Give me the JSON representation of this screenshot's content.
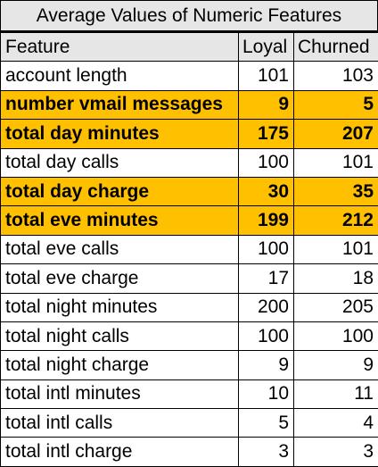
{
  "title": "Average Values of Numeric Features",
  "highlight_color": "#ffc000",
  "header_color": "#e6e6e6",
  "columns": [
    "Feature",
    "Loyal",
    "Churned"
  ],
  "rows": [
    {
      "feature": "account length",
      "loyal": "101",
      "churned": "103",
      "highlighted": false
    },
    {
      "feature": "number vmail messages",
      "loyal": "9",
      "churned": "5",
      "highlighted": true
    },
    {
      "feature": "total day minutes",
      "loyal": "175",
      "churned": "207",
      "highlighted": true
    },
    {
      "feature": "total day calls",
      "loyal": "100",
      "churned": "101",
      "highlighted": false
    },
    {
      "feature": "total day charge",
      "loyal": "30",
      "churned": "35",
      "highlighted": true
    },
    {
      "feature": "total eve minutes",
      "loyal": "199",
      "churned": "212",
      "highlighted": true
    },
    {
      "feature": "total eve calls",
      "loyal": "100",
      "churned": "101",
      "highlighted": false
    },
    {
      "feature": "total eve charge",
      "loyal": "17",
      "churned": "18",
      "highlighted": false
    },
    {
      "feature": "total night minutes",
      "loyal": "200",
      "churned": "205",
      "highlighted": false
    },
    {
      "feature": "total night calls",
      "loyal": "100",
      "churned": "100",
      "highlighted": false
    },
    {
      "feature": "total night charge",
      "loyal": "9",
      "churned": "9",
      "highlighted": false
    },
    {
      "feature": "total intl minutes",
      "loyal": "10",
      "churned": "11",
      "highlighted": false
    },
    {
      "feature": "total intl calls",
      "loyal": "5",
      "churned": "4",
      "highlighted": false
    },
    {
      "feature": "total intl charge",
      "loyal": "3",
      "churned": "3",
      "highlighted": false
    }
  ]
}
